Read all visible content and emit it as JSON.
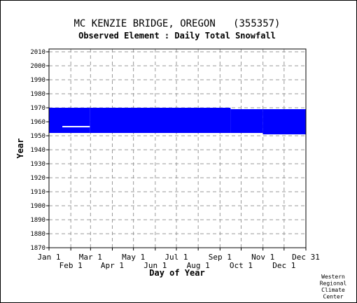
{
  "chart_data": {
    "type": "heatmap",
    "title": "MC KENZIE BRIDGE, OREGON   (355357)",
    "subtitle": "Observed Element : Daily Total Snowfall",
    "xlabel": "Day of Year",
    "ylabel": "Year",
    "xlim": [
      1,
      366
    ],
    "ylim": [
      1870,
      2012
    ],
    "yticks": [
      1870,
      1880,
      1890,
      1900,
      1910,
      1920,
      1930,
      1940,
      1950,
      1960,
      1970,
      1980,
      1990,
      2000,
      2010
    ],
    "xticks_upper": [
      {
        "label": "Jan 1",
        "day": 1
      },
      {
        "label": "Mar 1",
        "day": 60
      },
      {
        "label": "May 1",
        "day": 121
      },
      {
        "label": "Jul 1",
        "day": 182
      },
      {
        "label": "Sep 1",
        "day": 244
      },
      {
        "label": "Nov 1",
        "day": 305
      },
      {
        "label": "Dec 31",
        "day": 366
      }
    ],
    "xticks_lower": [
      {
        "label": "Feb 1",
        "day": 32
      },
      {
        "label": "Apr 1",
        "day": 91
      },
      {
        "label": "Jun 1",
        "day": 152
      },
      {
        "label": "Aug 1",
        "day": 213
      },
      {
        "label": "Oct 1",
        "day": 274
      },
      {
        "label": "Dec 1",
        "day": 335
      }
    ],
    "grid": true,
    "data_color": "#0000ff",
    "coverage": [
      {
        "day_start": 1,
        "day_end": 59,
        "year_start": 1952,
        "year_end": 1970
      },
      {
        "day_start": 59,
        "day_end": 259,
        "year_start": 1952,
        "year_end": 1970
      },
      {
        "day_start": 259,
        "day_end": 305,
        "year_start": 1952,
        "year_end": 1969
      },
      {
        "day_start": 305,
        "day_end": 366,
        "year_start": 1951,
        "year_end": 1969
      }
    ],
    "gaps": [
      {
        "day_start": 20,
        "day_end": 59,
        "year_start": 1956,
        "year_end": 1957
      }
    ],
    "credit": [
      "Western",
      "Regional",
      "Climate",
      "Center"
    ]
  }
}
